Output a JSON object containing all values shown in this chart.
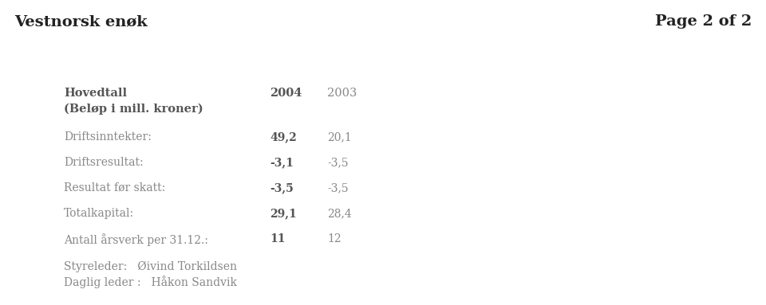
{
  "background_color": "#ffffff",
  "top_left_text": "Vestnorsk enøk",
  "top_right_text": "Page 2 of 2",
  "col_2004": "2004",
  "col_2003": "2003",
  "rows": [
    {
      "label": "Driftsinntekter:",
      "val2004": "49,2",
      "val2003": "20,1"
    },
    {
      "label": "Driftsresultat:",
      "val2004": "-3,1",
      "val2003": "-3,5"
    },
    {
      "label": "Resultat før skatt:",
      "val2004": "-3,5",
      "val2003": "-3,5"
    },
    {
      "label": "Totalkapital:",
      "val2004": "29,1",
      "val2003": "28,4"
    },
    {
      "label": "Antall årsverk per 31.12.:",
      "val2004": "11",
      "val2003": "12"
    }
  ],
  "footer_lines": [
    "Styreleder:   Øivind Torkildsen",
    "Daglig leder :   Håkon Sandvik"
  ],
  "text_color": "#888888",
  "label_color": "#888888",
  "bold_color": "#555555",
  "top_color": "#222222",
  "header_color": "#555555"
}
